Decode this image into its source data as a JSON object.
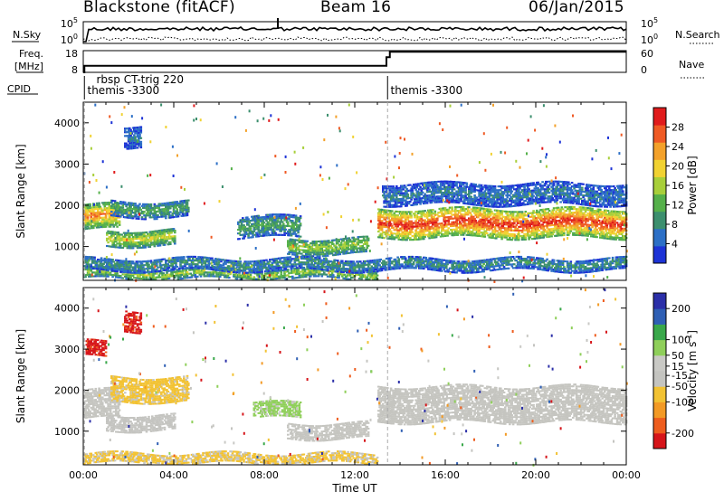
{
  "header": {
    "title": "Blackstone (fitACF)",
    "beam": "Beam 16",
    "date": "06/Jan/2015"
  },
  "colors": {
    "power_scale": [
      "#1d33d6",
      "#2c6fc6",
      "#3c8f6e",
      "#55b04a",
      "#a8cf3a",
      "#f1d232",
      "#f3a12a",
      "#ef5a24",
      "#e01b1c"
    ],
    "velocity_scale": [
      "#d6151a",
      "#ee5d1e",
      "#f39a25",
      "#f2c233",
      "#c4c4c0",
      "#c9c9c5",
      "#8fcf5a",
      "#39a84a",
      "#2f5fb4",
      "#2b2fa8"
    ],
    "ground_scatter": "#c5c5c0"
  },
  "chart_data": [
    {
      "type": "line",
      "name": "noise-panel",
      "left_labels": [
        "N.Sky"
      ],
      "right_labels": [
        "N.Search"
      ],
      "left_ticks": [
        "10^5",
        "10^0"
      ],
      "right_ticks": [
        "10^5",
        "10^0"
      ]
    },
    {
      "type": "line",
      "name": "frequency-panel",
      "left_labels": [
        "Freq.",
        "[MHz]"
      ],
      "right_labels": [
        "Nave"
      ],
      "left_ticks": [
        "18",
        "8"
      ],
      "right_ticks": [
        "60",
        "0"
      ],
      "freq_steps": [
        {
          "x": 0.0,
          "y": 8
        },
        {
          "x": 0.05,
          "y": 11
        },
        {
          "x": 13.4,
          "y": 15
        },
        {
          "x": 13.55,
          "y": 17.5
        },
        {
          "x": 24.0,
          "y": 17.5
        }
      ]
    },
    {
      "type": "table",
      "name": "cpid-panel",
      "label": "CPID",
      "entries": [
        {
          "text": "rbsp CT-trig 220",
          "x": 0.5
        },
        {
          "text": "themis -3300",
          "x": 0.1
        },
        {
          "text": "themis -3300",
          "x": 13.5
        }
      ],
      "change_times": [
        0.05,
        13.45
      ]
    },
    {
      "type": "heatmap",
      "name": "power-panel",
      "ylabel": "Slant Range [km]",
      "yticks": [
        1000,
        2000,
        3000,
        4000
      ],
      "ylim": [
        180,
        4500
      ],
      "xlim": [
        0,
        24
      ],
      "colorbar": {
        "label": "Power [dB]",
        "ticks": [
          4,
          8,
          12,
          16,
          20,
          24,
          28
        ],
        "range": [
          0,
          32
        ]
      },
      "bands": [
        {
          "t0": 0.0,
          "t1": 1.6,
          "r0": 1400,
          "r1": 2000,
          "p": 22
        },
        {
          "t0": 1.2,
          "t1": 4.6,
          "r0": 1700,
          "r1": 2100,
          "p": 10
        },
        {
          "t0": 1.0,
          "t1": 4.0,
          "r0": 1000,
          "r1": 1400,
          "p": 16
        },
        {
          "t0": 6.8,
          "t1": 9.6,
          "r0": 1200,
          "r1": 1700,
          "p": 10
        },
        {
          "t0": 9.0,
          "t1": 12.6,
          "r0": 800,
          "r1": 1200,
          "p": 14
        },
        {
          "t0": 13.0,
          "t1": 24.0,
          "r0": 1200,
          "r1": 1900,
          "p": 26
        },
        {
          "t0": 13.2,
          "t1": 24.0,
          "r0": 2000,
          "r1": 2500,
          "p": 6
        },
        {
          "t0": 0.0,
          "t1": 13.0,
          "r0": 200,
          "r1": 450,
          "p": 14
        },
        {
          "t0": 0.0,
          "t1": 24.0,
          "r0": 400,
          "r1": 700,
          "p": 8
        },
        {
          "t0": 1.8,
          "t1": 2.5,
          "r0": 3400,
          "r1": 3900,
          "p": 6
        }
      ]
    },
    {
      "type": "heatmap",
      "name": "velocity-panel",
      "ylabel": "Slant Range [km]",
      "xlabel": "Time UT",
      "xticks": [
        "00:00",
        "04:00",
        "08:00",
        "12:00",
        "16:00",
        "20:00",
        "00:00"
      ],
      "yticks": [
        1000,
        2000,
        3000,
        4000
      ],
      "ylim": [
        180,
        4500
      ],
      "xlim": [
        0,
        24
      ],
      "colorbar": {
        "label": "Velocity [m s^-1]",
        "ticks": [
          200,
          100,
          50,
          15,
          -15,
          -50,
          -100,
          -200
        ],
        "range": [
          -250,
          250
        ]
      },
      "bands": [
        {
          "t0": 0.0,
          "t1": 1.6,
          "r0": 1300,
          "r1": 2000,
          "v": 0,
          "gs": true
        },
        {
          "t0": 1.2,
          "t1": 4.6,
          "r0": 1700,
          "r1": 2300,
          "v": -70
        },
        {
          "t0": 1.0,
          "t1": 4.0,
          "r0": 1000,
          "r1": 1400,
          "v": -20
        },
        {
          "t0": 7.5,
          "t1": 9.6,
          "r0": 1300,
          "r1": 1700,
          "v": 70
        },
        {
          "t0": 9.0,
          "t1": 12.6,
          "r0": 800,
          "r1": 1200,
          "v": 0,
          "gs": true
        },
        {
          "t0": 13.0,
          "t1": 24.0,
          "r0": 1200,
          "r1": 2100,
          "v": 0,
          "gs": true
        },
        {
          "t0": 0.0,
          "t1": 13.0,
          "r0": 200,
          "r1": 450,
          "v": -60
        },
        {
          "t0": 1.8,
          "t1": 2.5,
          "r0": 3400,
          "r1": 3900,
          "v": -220
        },
        {
          "t0": 0.1,
          "t1": 1.0,
          "r0": 2800,
          "r1": 3200,
          "v": -220
        }
      ]
    }
  ]
}
